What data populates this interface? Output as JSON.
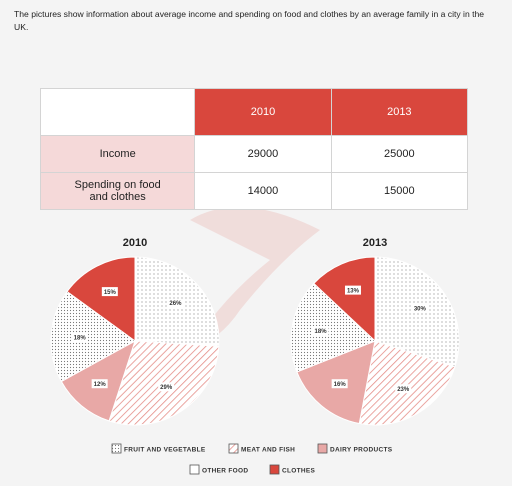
{
  "intro_text": "The pictures show information about average income and spending on food and clothes by an average family in a city in the UK.",
  "table": {
    "years": [
      "2010",
      "2013"
    ],
    "rows": [
      {
        "label": "Income",
        "values": [
          "29000",
          "25000"
        ]
      },
      {
        "label_line1": "Spending on food",
        "label_line2": "and clothes",
        "values": [
          "14000",
          "15000"
        ]
      }
    ]
  },
  "colors": {
    "clothes": "#d9473d",
    "dairy": "#e8a8a6",
    "meat_hatch": "#e58e88",
    "dots": "#888888",
    "table_head": "#d9473d",
    "row_head": "#f5d9d9"
  },
  "chart_data": [
    {
      "type": "pie",
      "title": "2010",
      "categories": [
        "Fruit and vegetable",
        "Meat and fish",
        "Dairy products",
        "Other food",
        "Clothes"
      ],
      "values": [
        26,
        29,
        12,
        18,
        15
      ],
      "labels": [
        "26%",
        "29%",
        "12%",
        "18%",
        "15%"
      ]
    },
    {
      "type": "pie",
      "title": "2013",
      "categories": [
        "Fruit and vegetable",
        "Meat and fish",
        "Dairy products",
        "Other food",
        "Clothes"
      ],
      "values": [
        30,
        23,
        16,
        18,
        13
      ],
      "labels": [
        "30%",
        "23%",
        "16%",
        "18%",
        "13%"
      ]
    }
  ],
  "legend": [
    {
      "label": "FRUIT AND VEGETABLE",
      "pattern": "fruit"
    },
    {
      "label": "MEAT AND FISH",
      "pattern": "meat"
    },
    {
      "label": "DAIRY PRODUCTS",
      "pattern": "dairy"
    },
    {
      "label": "OTHER FOOD",
      "pattern": "other"
    },
    {
      "label": "CLOTHES",
      "pattern": "clothes"
    }
  ]
}
